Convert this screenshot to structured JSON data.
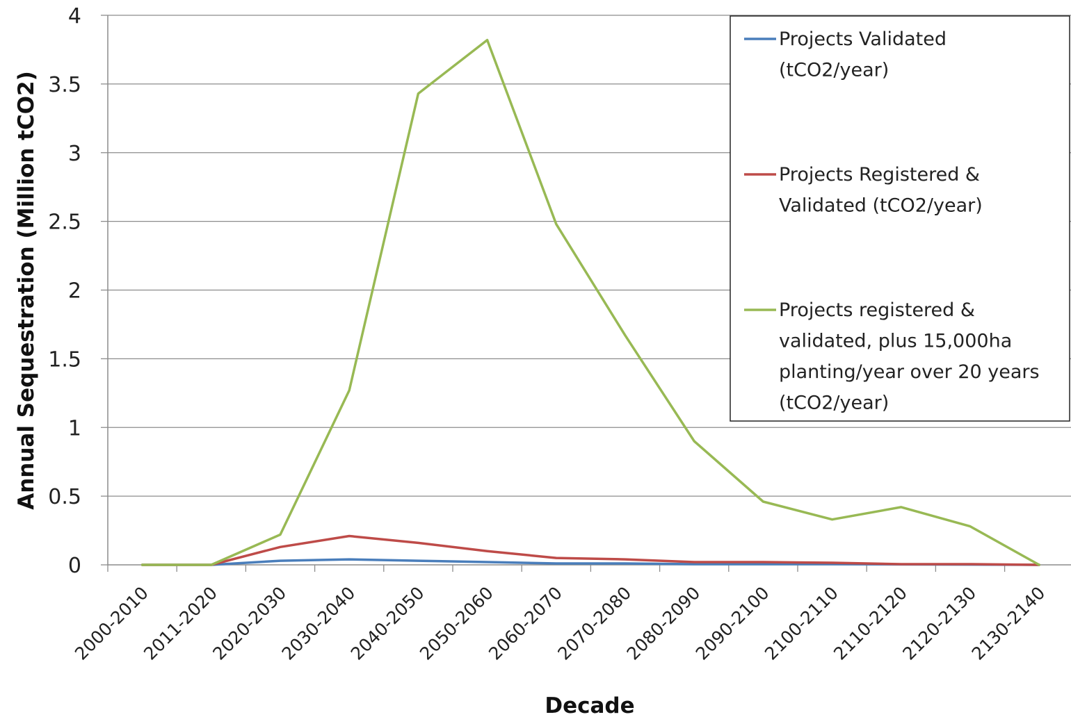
{
  "chart_data": {
    "type": "line",
    "title": "",
    "xlabel": "Decade",
    "ylabel": "Annual Sequestration (Million tCO2)",
    "ylim": [
      0,
      4
    ],
    "yticks": [
      "0",
      "0.5",
      "1",
      "1.5",
      "2",
      "2.5",
      "3",
      "3.5",
      "4"
    ],
    "grid": true,
    "legend_position": "top-right",
    "categories": [
      "2000-2010",
      "2011-2020",
      "2020-2030",
      "2030-2040",
      "2040-2050",
      "2050-2060",
      "2060-2070",
      "2070-2080",
      "2080-2090",
      "2090-2100",
      "2100-2110",
      "2110-2120",
      "2120-2130",
      "2130-2140"
    ],
    "series": [
      {
        "name": "Projects Validated (tCO2/year)",
        "legend_lines": [
          "Projects Validated",
          "(tCO2/year)"
        ],
        "color": "#4a7ebb",
        "values": [
          0,
          0,
          0.03,
          0.04,
          0.03,
          0.02,
          0.01,
          0.01,
          0.005,
          0.005,
          0.005,
          0.003,
          0.002,
          0
        ]
      },
      {
        "name": "Projects Registered & Validated (tCO2/year)",
        "legend_lines": [
          "Projects Registered &",
          "Validated (tCO2/year)"
        ],
        "color": "#be4b48",
        "values": [
          0,
          0,
          0.13,
          0.21,
          0.16,
          0.1,
          0.05,
          0.04,
          0.02,
          0.02,
          0.015,
          0.005,
          0.005,
          0
        ]
      },
      {
        "name": "Projects registered & validated, plus 15,000ha planting/year over 20 years (tCO2/year)",
        "legend_lines": [
          "Projects registered &",
          "validated, plus 15,000ha",
          "planting/year over 20 years",
          "(tCO2/year)"
        ],
        "color": "#98b954",
        "values": [
          0,
          0,
          0.22,
          1.27,
          3.43,
          3.82,
          2.48,
          1.67,
          0.9,
          0.46,
          0.33,
          0.42,
          0.28,
          0
        ]
      }
    ]
  }
}
